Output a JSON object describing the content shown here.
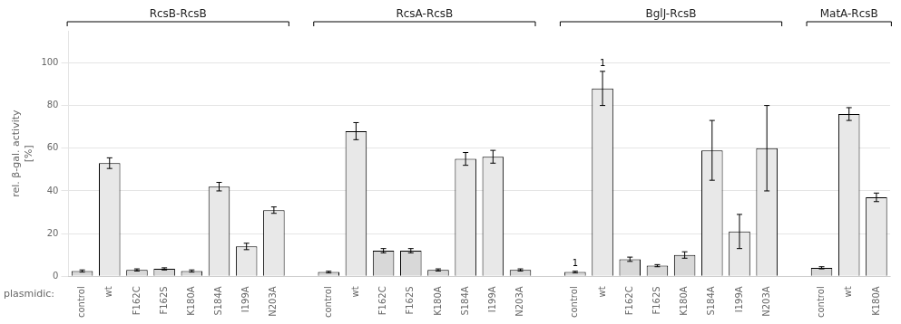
{
  "chart_data": {
    "type": "bar",
    "ylabel": "rel. β-gal. activity\n[%]",
    "xlabel": "plasmidic:",
    "ylim": [
      0,
      115
    ],
    "yticks": [
      0,
      20,
      40,
      60,
      80,
      100
    ],
    "grid": true,
    "groups": [
      {
        "label": "RcsB-RcsB",
        "bars": [
          {
            "category": "control",
            "value": 2.5,
            "error": 0.5,
            "color": "#d8d8d8"
          },
          {
            "category": "wt",
            "value": 53,
            "error": 2.5,
            "color": "#e8e8e8"
          },
          {
            "category": "F162C",
            "value": 3,
            "error": 0.5,
            "color": "#d8d8d8"
          },
          {
            "category": "F162S",
            "value": 3.5,
            "error": 0.5,
            "color": "#d8d8d8"
          },
          {
            "category": "K180A",
            "value": 2.5,
            "error": 0.5,
            "color": "#d8d8d8"
          },
          {
            "category": "S184A",
            "value": 42,
            "error": 2.0,
            "color": "#e8e8e8"
          },
          {
            "category": "I199A",
            "value": 14,
            "error": 1.5,
            "color": "#e8e8e8"
          },
          {
            "category": "N203A",
            "value": 31,
            "error": 1.5,
            "color": "#e8e8e8"
          }
        ]
      },
      {
        "label": "RcsA-RcsB",
        "bars": [
          {
            "category": "control",
            "value": 2,
            "error": 0.4,
            "color": "#d8d8d8"
          },
          {
            "category": "wt",
            "value": 68,
            "error": 4,
            "color": "#e8e8e8"
          },
          {
            "category": "F162C",
            "value": 12,
            "error": 1.0,
            "color": "#d8d8d8"
          },
          {
            "category": "F162S",
            "value": 12,
            "error": 1.0,
            "color": "#d8d8d8"
          },
          {
            "category": "K180A",
            "value": 3,
            "error": 0.5,
            "color": "#d8d8d8"
          },
          {
            "category": "S184A",
            "value": 55,
            "error": 3,
            "color": "#e8e8e8"
          },
          {
            "category": "I199A",
            "value": 56,
            "error": 3,
            "color": "#e8e8e8"
          },
          {
            "category": "N203A",
            "value": 3,
            "error": 0.5,
            "color": "#d8d8d8"
          }
        ]
      },
      {
        "label": "BglJ-RcsB",
        "bars": [
          {
            "category": "control",
            "value": 2,
            "error": 0.4,
            "color": "#d8d8d8",
            "annotation": "1"
          },
          {
            "category": "wt",
            "value": 88,
            "error": 8,
            "color": "#e8e8e8",
            "annotation": "1"
          },
          {
            "category": "F162C",
            "value": 8,
            "error": 1,
            "color": "#d8d8d8"
          },
          {
            "category": "F162S",
            "value": 5,
            "error": 0.5,
            "color": "#d8d8d8"
          },
          {
            "category": "K180A",
            "value": 10,
            "error": 1.5,
            "color": "#d8d8d8"
          },
          {
            "category": "S184A",
            "value": 59,
            "error": 14,
            "color": "#e8e8e8"
          },
          {
            "category": "I199A",
            "value": 21,
            "error": 8,
            "color": "#e8e8e8"
          },
          {
            "category": "N203A",
            "value": 60,
            "error": 20,
            "color": "#e8e8e8"
          }
        ]
      },
      {
        "label": "MatA-RcsB",
        "bars": [
          {
            "category": "control",
            "value": 4,
            "error": 0.5,
            "color": "#d8d8d8"
          },
          {
            "category": "wt",
            "value": 76,
            "error": 3,
            "color": "#e8e8e8"
          },
          {
            "category": "K180A",
            "value": 37,
            "error": 2,
            "color": "#e8e8e8"
          }
        ]
      }
    ]
  }
}
